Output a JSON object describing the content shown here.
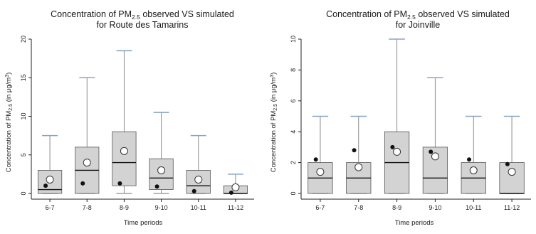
{
  "chart_data": [
    {
      "type": "box",
      "title": "Concentration of PM2.5 observed VS simulated",
      "title_main": "Concentration of PM",
      "title_sub": "2.5",
      "title_rest": " observed VS simulated",
      "title_line2": "for Route des Tamarins",
      "ylabel": "Concentration of PM2.5 (in μg/m³)",
      "ylabel_main": "Concentration of PM",
      "ylabel_sub": "2.5",
      "ylabel_rest": " (in μg/m",
      "ylabel_sup": "3",
      "ylabel_end": ")",
      "xlabel": "Time periods",
      "ylim": [
        0,
        20
      ],
      "yticks": [
        "0",
        "5",
        "10",
        "15",
        "20"
      ],
      "yticks_values": [
        0,
        5,
        10,
        15,
        20
      ],
      "categories": [
        "6-7",
        "7-8",
        "8-9",
        "9-10",
        "10-11",
        "11-12"
      ],
      "boxes": [
        {
          "whisker_low": 0,
          "q1": 0,
          "median": 0.5,
          "q3": 3,
          "whisker_high": 7.5,
          "mean": 1.8,
          "point": 1.0
        },
        {
          "whisker_low": 0,
          "q1": 0,
          "median": 3,
          "q3": 6,
          "whisker_high": 15,
          "mean": 4.0,
          "point": 1.3
        },
        {
          "whisker_low": 0,
          "q1": 1,
          "median": 4,
          "q3": 8,
          "whisker_high": 18.5,
          "mean": 5.5,
          "point": 1.3
        },
        {
          "whisker_low": 0,
          "q1": 0.5,
          "median": 2,
          "q3": 4.5,
          "whisker_high": 10.5,
          "mean": 3.0,
          "point": 0.9
        },
        {
          "whisker_low": 0,
          "q1": 0,
          "median": 1,
          "q3": 3,
          "whisker_high": 7.5,
          "mean": 1.8,
          "point": 0.3
        },
        {
          "whisker_low": 0,
          "q1": 0,
          "median": 0,
          "q3": 1,
          "whisker_high": 2.5,
          "mean": 0.8,
          "point": 0.1
        }
      ],
      "box_color": "#d3d3d3",
      "whisker_cap_color": "#8aa3c2"
    },
    {
      "type": "box",
      "title": "Concentration of PM2.5 observed VS simulated",
      "title_main": "Concentration of PM",
      "title_sub": "2.5",
      "title_rest": " observed VS simulated",
      "title_line2": "for Joinville",
      "ylabel": "Concentration of PM2.5 (in μg/m³)",
      "ylabel_main": "Concentration of PM",
      "ylabel_sub": "2.5",
      "ylabel_rest": " (in μg/m",
      "ylabel_sup": "3",
      "ylabel_end": ")",
      "xlabel": "Time periods",
      "ylim": [
        0,
        10
      ],
      "yticks": [
        "0",
        "2",
        "4",
        "6",
        "8",
        "10"
      ],
      "yticks_values": [
        0,
        2,
        4,
        6,
        8,
        10
      ],
      "categories": [
        "6-7",
        "7-8",
        "8-9",
        "9-10",
        "10-11",
        "11-12"
      ],
      "boxes": [
        {
          "whisker_low": 0,
          "q1": 0,
          "median": 1,
          "q3": 2,
          "whisker_high": 5,
          "mean": 1.4,
          "point": 2.2
        },
        {
          "whisker_low": 0,
          "q1": 0,
          "median": 1,
          "q3": 2,
          "whisker_high": 5,
          "mean": 1.7,
          "point": 2.8
        },
        {
          "whisker_low": 0,
          "q1": 0,
          "median": 2,
          "q3": 4,
          "whisker_high": 10,
          "mean": 2.7,
          "point": 3.0
        },
        {
          "whisker_low": 0,
          "q1": 0,
          "median": 1,
          "q3": 3,
          "whisker_high": 7.5,
          "mean": 2.4,
          "point": 2.7
        },
        {
          "whisker_low": 0,
          "q1": 0,
          "median": 1,
          "q3": 2,
          "whisker_high": 5,
          "mean": 1.5,
          "point": 2.2
        },
        {
          "whisker_low": 0,
          "q1": 0,
          "median": 0,
          "q3": 2,
          "whisker_high": 5,
          "mean": 1.4,
          "point": 1.9
        }
      ],
      "box_color": "#d3d3d3",
      "whisker_cap_color": "#8aa3c2"
    }
  ]
}
